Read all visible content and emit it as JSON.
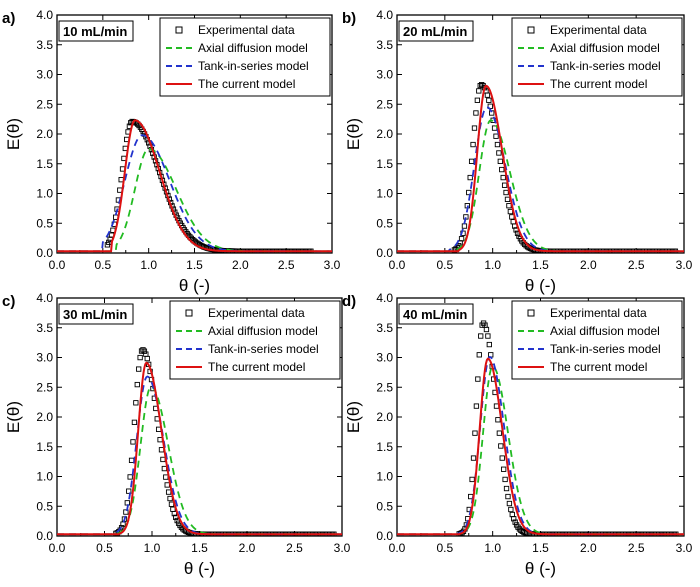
{
  "figure": {
    "ylabel": "E(θ)",
    "xlabel": "θ (-)",
    "legend": [
      "Experimental data",
      "Axial diffusion model",
      "Tank-in-series model",
      "The current model"
    ],
    "colors": {
      "experimental": "#000000",
      "axial": "#22bb22",
      "tank": "#2233cc",
      "current": "#dd1111"
    }
  },
  "chart_data": [
    {
      "type": "line",
      "panel_label": "a)",
      "flow_label": "10 mL/min",
      "xlabel": "θ (-)",
      "ylabel": "E(θ)",
      "xlim": [
        0,
        3
      ],
      "ylim": [
        0,
        4
      ],
      "xticks": [
        "0.0",
        "0.5",
        "1.0",
        "1.5",
        "2.0",
        "2.5",
        "3.0"
      ],
      "yticks": [
        "0.0",
        "0.5",
        "1.0",
        "1.5",
        "2.0",
        "2.5",
        "3.0",
        "3.5",
        "4.0"
      ],
      "series": [
        {
          "name": "Experimental data",
          "style": "markers",
          "peak_x": 0.82,
          "peak_y": 2.18,
          "x_start": 0.55,
          "x_end": 2.78,
          "rise_width": 0.11,
          "tail_width": 0.3
        },
        {
          "name": "Axial diffusion model",
          "style": "dashed",
          "peak_x": 1.0,
          "peak_y": 1.72,
          "x_start": 0.65,
          "x_end": 2.5,
          "rise_width": 0.15,
          "tail_width": 0.3
        },
        {
          "name": "Tank-in-series model",
          "style": "dashed",
          "peak_x": 0.93,
          "peak_y": 1.95,
          "x_start": 0.5,
          "x_end": 2.5,
          "rise_width": 0.19,
          "tail_width": 0.3
        },
        {
          "name": "The current model",
          "style": "solid",
          "peak_x": 0.85,
          "peak_y": 2.2,
          "x_start": 0.6,
          "x_end": 2.5,
          "rise_width": 0.11,
          "tail_width": 0.27
        }
      ]
    },
    {
      "type": "line",
      "panel_label": "b)",
      "flow_label": "20 mL/min",
      "xlabel": "θ (-)",
      "ylabel": "E(θ)",
      "xlim": [
        0,
        3
      ],
      "ylim": [
        0,
        4
      ],
      "xticks": [
        "0.0",
        "0.5",
        "1.0",
        "1.5",
        "2.0",
        "2.5",
        "3.0"
      ],
      "yticks": [
        "0.0",
        "0.5",
        "1.0",
        "1.5",
        "2.0",
        "2.5",
        "3.0",
        "3.5",
        "4.0"
      ],
      "series": [
        {
          "name": "Experimental data",
          "style": "markers",
          "peak_x": 0.88,
          "peak_y": 2.8,
          "x_start": 0.6,
          "x_end": 2.92,
          "rise_width": 0.09,
          "tail_width": 0.18
        },
        {
          "name": "Axial diffusion model",
          "style": "dashed",
          "peak_x": 0.98,
          "peak_y": 2.2,
          "x_start": 0.6,
          "x_end": 2.5,
          "rise_width": 0.12,
          "tail_width": 0.2
        },
        {
          "name": "Tank-in-series model",
          "style": "dashed",
          "peak_x": 0.94,
          "peak_y": 2.42,
          "x_start": 0.55,
          "x_end": 2.5,
          "rise_width": 0.13,
          "tail_width": 0.19
        },
        {
          "name": "The current model",
          "style": "solid",
          "peak_x": 0.93,
          "peak_y": 2.78,
          "x_start": 0.65,
          "x_end": 2.5,
          "rise_width": 0.09,
          "tail_width": 0.17
        }
      ]
    },
    {
      "type": "line",
      "panel_label": "c)",
      "flow_label": "30 mL/min",
      "xlabel": "θ (-)",
      "ylabel": "E(θ)",
      "xlim": [
        0,
        3
      ],
      "ylim": [
        0,
        4
      ],
      "xticks": [
        "0.0",
        "0.5",
        "1.0",
        "1.5",
        "2.0",
        "2.5",
        "3.0"
      ],
      "yticks": [
        "0.0",
        "0.5",
        "1.0",
        "1.5",
        "2.0",
        "2.5",
        "3.0",
        "3.5",
        "4.0"
      ],
      "series": [
        {
          "name": "Experimental data",
          "style": "markers",
          "peak_x": 0.9,
          "peak_y": 3.1,
          "x_start": 0.62,
          "x_end": 2.92,
          "rise_width": 0.085,
          "tail_width": 0.16
        },
        {
          "name": "Axial diffusion model",
          "style": "dashed",
          "peak_x": 0.99,
          "peak_y": 2.48,
          "x_start": 0.62,
          "x_end": 2.5,
          "rise_width": 0.11,
          "tail_width": 0.18
        },
        {
          "name": "Tank-in-series model",
          "style": "dashed",
          "peak_x": 0.95,
          "peak_y": 2.65,
          "x_start": 0.58,
          "x_end": 2.5,
          "rise_width": 0.11,
          "tail_width": 0.17
        },
        {
          "name": "The current model",
          "style": "solid",
          "peak_x": 0.94,
          "peak_y": 2.88,
          "x_start": 0.66,
          "x_end": 2.5,
          "rise_width": 0.085,
          "tail_width": 0.16
        }
      ]
    },
    {
      "type": "line",
      "panel_label": "d)",
      "flow_label": "40 mL/min",
      "xlabel": "θ (-)",
      "ylabel": "E(θ)",
      "xlim": [
        0,
        3
      ],
      "ylim": [
        0,
        4
      ],
      "xticks": [
        "0.0",
        "0.5",
        "1.0",
        "1.5",
        "2.0",
        "2.5",
        "3.0"
      ],
      "yticks": [
        "0.0",
        "0.5",
        "1.0",
        "1.5",
        "2.0",
        "2.5",
        "3.0",
        "3.5",
        "4.0"
      ],
      "series": [
        {
          "name": "Experimental data",
          "style": "markers",
          "peak_x": 0.9,
          "peak_y": 3.55,
          "x_start": 0.65,
          "x_end": 2.92,
          "rise_width": 0.07,
          "tail_width": 0.14
        },
        {
          "name": "Axial diffusion model",
          "style": "dashed",
          "peak_x": 1.0,
          "peak_y": 2.82,
          "x_start": 0.65,
          "x_end": 2.5,
          "rise_width": 0.1,
          "tail_width": 0.16
        },
        {
          "name": "Tank-in-series model",
          "style": "dashed",
          "peak_x": 0.97,
          "peak_y": 2.98,
          "x_start": 0.62,
          "x_end": 2.5,
          "rise_width": 0.1,
          "tail_width": 0.15
        },
        {
          "name": "The current model",
          "style": "solid",
          "peak_x": 0.95,
          "peak_y": 2.95,
          "x_start": 0.66,
          "x_end": 2.5,
          "rise_width": 0.085,
          "tail_width": 0.15
        }
      ]
    }
  ]
}
